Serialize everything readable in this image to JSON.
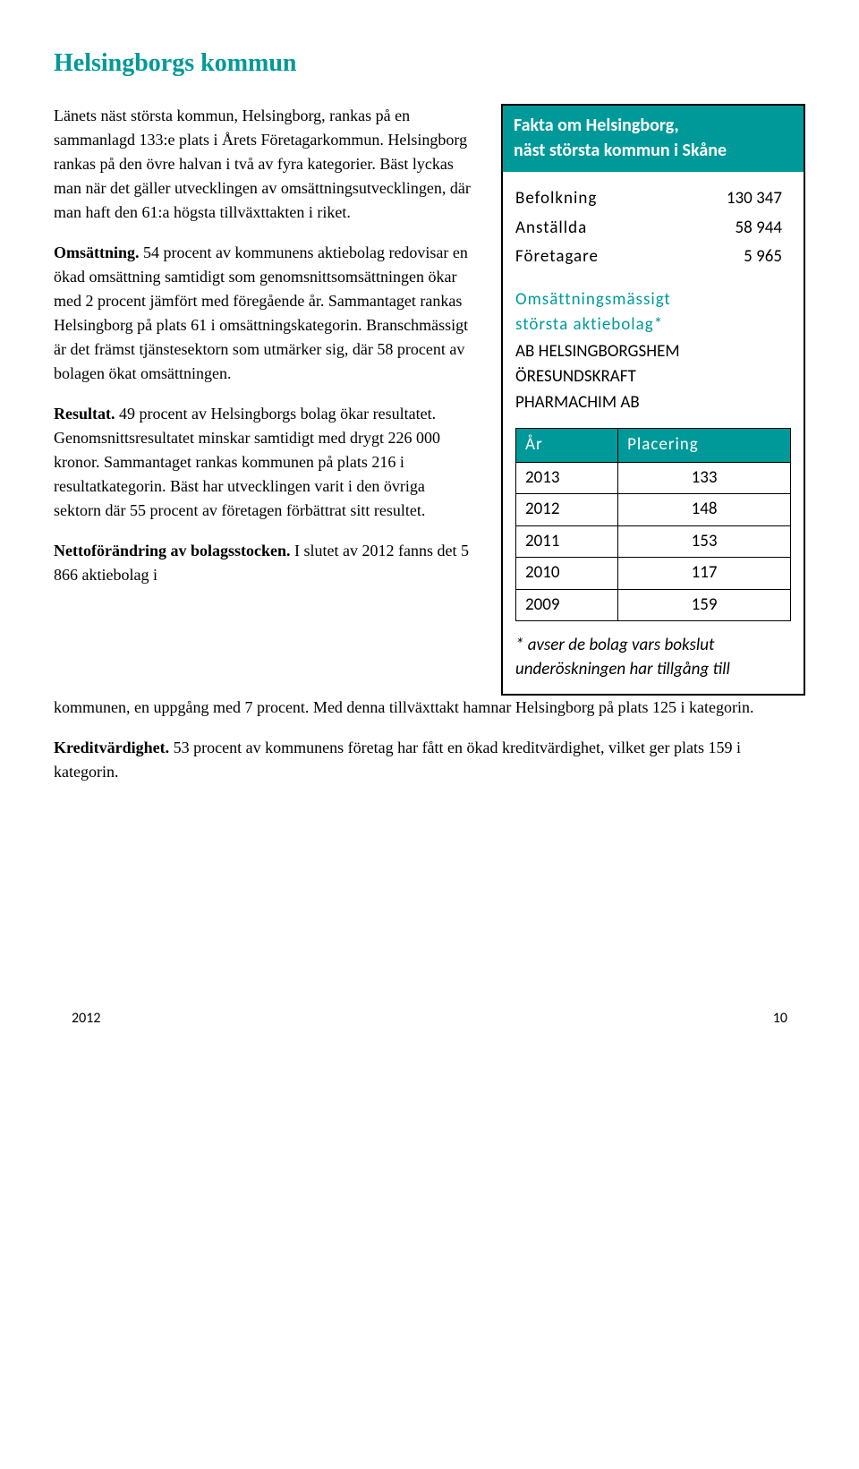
{
  "title": "Helsingborgs kommun",
  "intro": "Länets näst största kommun, Helsingborg, rankas på en sammanlagd 133:e plats i Årets Företagarkommun. Helsingborg rankas på den övre halvan i två av fyra kategorier. Bäst lyckas man när det gäller utvecklingen av omsättningsutvecklingen, där man haft den 61:a högsta tillväxttakten i riket.",
  "sections": {
    "omsattning": {
      "label": "Omsättning.",
      "text": " 54 procent av kommunens aktiebolag redovisar en ökad omsättning samtidigt som genomsnittsomsättningen ökar med 2 procent jämfört med föregående år. Sammantaget rankas Helsingborg på plats 61 i omsättningskategorin. Branschmässigt är det främst tjänstesektorn som utmärker sig, där 58 procent av bolagen ökat omsättningen."
    },
    "resultat": {
      "label": "Resultat.",
      "text": " 49 procent av Helsingborgs bolag ökar resultatet. Genomsnittsresultatet minskar samtidigt med drygt 226 000 kronor. Sammantaget rankas kommunen på plats 216 i resultatkategorin. Bäst har utvecklingen varit i den övriga sektorn där 55 procent av företagen förbättrat sitt resultet."
    },
    "netto": {
      "label": "Nettoförändring av bolagsstocken.",
      "text_start": " I slutet av 2012 fanns det 5 866 aktiebolag i",
      "text_end": "kommunen, en uppgång med 7 procent. Med denna tillväxttakt hamnar Helsingborg på plats 125 i kategorin."
    },
    "kredit": {
      "label": "Kreditvärdighet.",
      "text": " 53 procent av kommunens företag har fått en ökad kreditvärdighet, vilket ger plats 159 i kategorin."
    }
  },
  "factbox": {
    "header_line1": "Fakta om Helsingborg,",
    "header_line2": "näst största kommun i Skåne",
    "stats": [
      {
        "label": "Befolkning",
        "value": "130 347"
      },
      {
        "label": "Anställda",
        "value": "58 944"
      },
      {
        "label": "Företagare",
        "value": "5 965"
      }
    ],
    "sub_line1": "Omsättningsmässigt",
    "sub_line2": "största aktiebolag*",
    "companies": [
      "AB HELSINGBORGSHEM",
      "ÖRESUNDSKRAFT",
      "PHARMACHIM AB"
    ],
    "rank_header": {
      "year": "År",
      "rank": "Placering"
    },
    "ranks": [
      {
        "year": "2013",
        "rank": "133"
      },
      {
        "year": "2012",
        "rank": "148"
      },
      {
        "year": "2011",
        "rank": "153"
      },
      {
        "year": "2010",
        "rank": "117"
      },
      {
        "year": "2009",
        "rank": "159"
      }
    ],
    "footnote": "* avser de bolag vars bokslut underöskningen har tillgång till"
  },
  "footer": {
    "year": "2012",
    "page": "10"
  },
  "colors": {
    "accent": "#009999",
    "text": "#000000",
    "bg": "#ffffff"
  }
}
